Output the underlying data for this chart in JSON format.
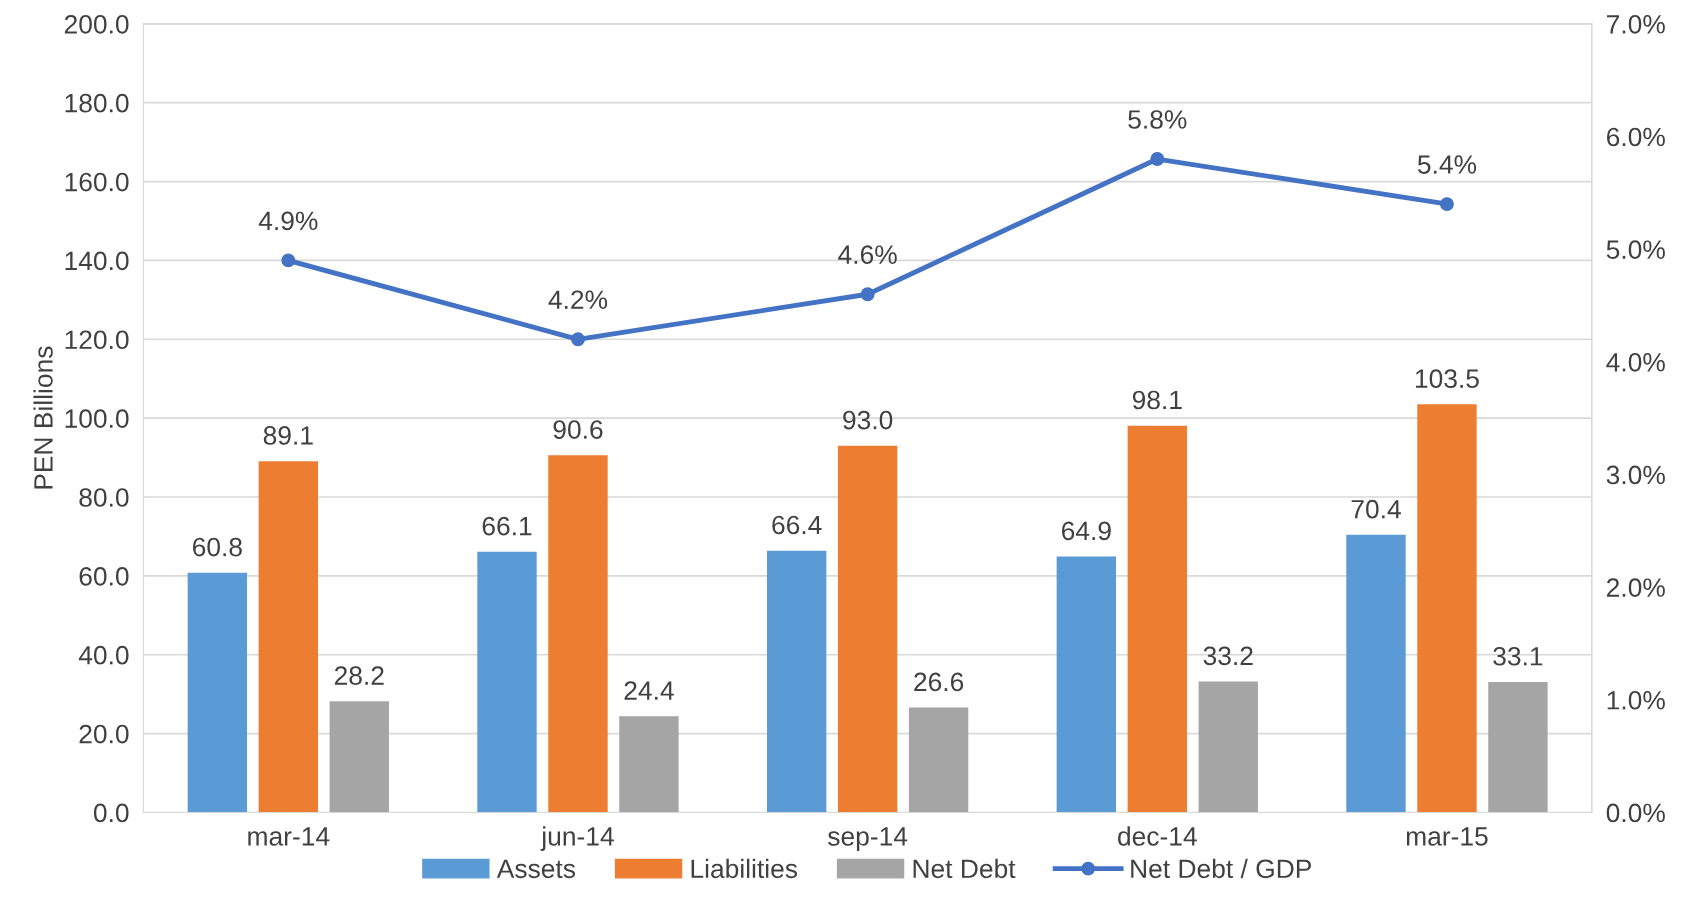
{
  "chart_data": {
    "type": "bar",
    "ylabel": "PEN Billions",
    "categories": [
      "mar-14",
      "jun-14",
      "sep-14",
      "dec-14",
      "mar-15"
    ],
    "series": [
      {
        "name": "Assets",
        "color": "#5b9bd5",
        "values": [
          60.8,
          66.1,
          66.4,
          64.9,
          70.4
        ],
        "value_labels": [
          "60.8",
          "66.1",
          "66.4",
          "64.9",
          "70.4"
        ]
      },
      {
        "name": "Liabilities",
        "color": "#ed7d31",
        "values": [
          89.1,
          90.6,
          93.0,
          98.1,
          103.5
        ],
        "value_labels": [
          "89.1",
          "90.6",
          "93.0",
          "98.1",
          "103.5"
        ]
      },
      {
        "name": "Net Debt",
        "color": "#a5a5a5",
        "values": [
          28.2,
          24.4,
          26.6,
          33.2,
          33.1
        ],
        "value_labels": [
          "28.2",
          "24.4",
          "26.6",
          "33.2",
          "33.1"
        ]
      },
      {
        "name": "Net Debt / GDP",
        "type": "line",
        "axis": "y2",
        "color": "#4472c4",
        "marker": "circle",
        "values": [
          4.9,
          4.2,
          4.6,
          5.8,
          5.4
        ],
        "value_labels": [
          "4.9%",
          "4.2%",
          "4.6%",
          "5.8%",
          "5.4%"
        ]
      }
    ],
    "ylim": [
      0,
      200
    ],
    "yticks": [
      {
        "value": 0,
        "label": "0.0"
      },
      {
        "value": 20,
        "label": "20.0"
      },
      {
        "value": 40,
        "label": "40.0"
      },
      {
        "value": 60,
        "label": "60.0"
      },
      {
        "value": 80,
        "label": "80.0"
      },
      {
        "value": 100,
        "label": "100.0"
      },
      {
        "value": 120,
        "label": "120.0"
      },
      {
        "value": 140,
        "label": "140.0"
      },
      {
        "value": 160,
        "label": "160.0"
      },
      {
        "value": 180,
        "label": "180.0"
      },
      {
        "value": 200,
        "label": "200.0"
      }
    ],
    "y2lim": [
      0,
      7
    ],
    "y2ticks": [
      {
        "value": 0,
        "label": "0.0%"
      },
      {
        "value": 1,
        "label": "1.0%"
      },
      {
        "value": 2,
        "label": "2.0%"
      },
      {
        "value": 3,
        "label": "3.0%"
      },
      {
        "value": 4,
        "label": "4.0%"
      },
      {
        "value": 5,
        "label": "5.0%"
      },
      {
        "value": 6,
        "label": "6.0%"
      },
      {
        "value": 7,
        "label": "7.0%"
      }
    ],
    "grid": "y",
    "legend": "bottom"
  }
}
